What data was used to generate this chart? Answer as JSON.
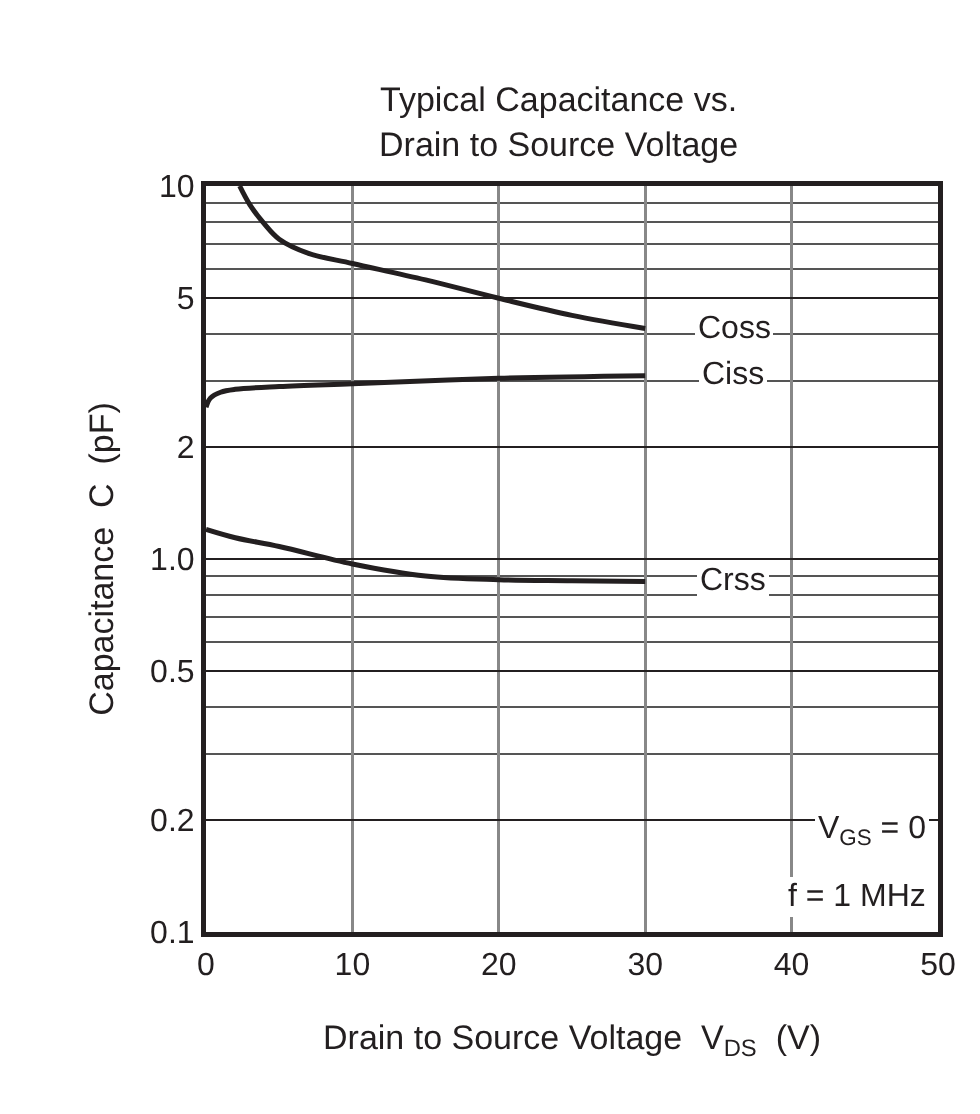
{
  "chart_data": {
    "type": "line",
    "title": "Typical Capacitance vs.\nDrain to Source Voltage",
    "xlabel": "Drain to Source Voltage  V$_{DS}$  (V)",
    "ylabel": "Capacitance  C  (pF)",
    "log": "y",
    "grid": true,
    "legend": false,
    "marker": "none",
    "line_style": "solid",
    "xlim": [
      0,
      50
    ],
    "xticks": [
      0,
      10,
      20,
      30,
      40,
      50
    ],
    "ylim": [
      0.1,
      10
    ],
    "yticks": [
      0.1,
      0.2,
      0.5,
      {
        "value": 1,
        "label": "1.0"
      },
      2,
      5,
      10
    ],
    "series": [
      {
        "name": "Coss",
        "color": "#231f20",
        "x": [
          2.3,
          3,
          4,
          5,
          7,
          10,
          15,
          20,
          25,
          30
        ],
        "values": [
          10,
          8.9,
          7.9,
          7.2,
          6.6,
          6.2,
          5.6,
          5.0,
          4.5,
          4.15
        ]
      },
      {
        "name": "Ciss",
        "color": "#231f20",
        "x": [
          0,
          0.3,
          1,
          2,
          5,
          10,
          20,
          30
        ],
        "values": [
          2.55,
          2.7,
          2.8,
          2.85,
          2.9,
          2.95,
          3.05,
          3.1
        ]
      },
      {
        "name": "Crss",
        "color": "#231f20",
        "x": [
          0,
          2,
          5,
          10,
          15,
          20,
          25,
          30
        ],
        "values": [
          1.2,
          1.14,
          1.08,
          0.97,
          0.9,
          0.88,
          0.875,
          0.87
        ]
      }
    ],
    "annotations": [
      "V$_{GS}$ = 0",
      "f = 1 MHz"
    ]
  }
}
